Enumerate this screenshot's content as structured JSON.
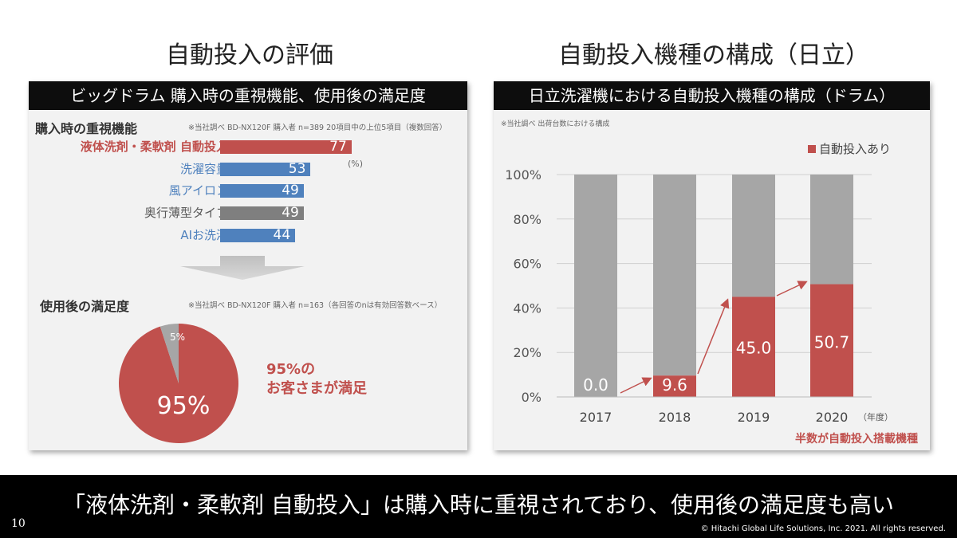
{
  "left": {
    "heading": "自動投入の評価",
    "panel_title": "ビッグドラム 購入時の重視機能、使用後の満足度",
    "section1_title": "購入時の重視機能",
    "section1_note": "※当社調べ BD-NX120F 購入者 n=389 20項目中の上位5項目（複数回答）",
    "unit": "(%)",
    "bars": [
      {
        "label": "液体洗剤・柔軟剤 自動投入",
        "value": 77,
        "color": "#c0504d",
        "label_color": "#c0504d",
        "bold": true
      },
      {
        "label": "洗濯容量",
        "value": 53,
        "color": "#4f81bd",
        "label_color": "#4f81bd",
        "bold": false
      },
      {
        "label": "風アイロン",
        "value": 49,
        "color": "#4f81bd",
        "label_color": "#4f81bd",
        "bold": false
      },
      {
        "label": "奥行薄型タイプ",
        "value": 49,
        "color": "#7f7f7f",
        "label_color": "#595959",
        "bold": false
      },
      {
        "label": "AIお洗濯",
        "value": 44,
        "color": "#4f81bd",
        "label_color": "#4f81bd",
        "bold": false
      }
    ],
    "section2_title": "使用後の満足度",
    "section2_note": "※当社調べ BD-NX120F 購入者 n=163（各回答のnは有効回答数ベース）",
    "pie_main_label": "95%",
    "pie_small_label": "5%",
    "callout_line1": "95%の",
    "callout_line2": "お客さまが満足"
  },
  "right": {
    "heading": "自動投入機種の構成（日立）",
    "panel_title": "日立洗濯機における自動投入機種の構成（ドラム）",
    "note": "※当社調べ 出荷台数における構成",
    "legend": "自動投入あり",
    "x_unit": "（年度）",
    "conclusion": "半数が自動投入搭載機種"
  },
  "footer": {
    "main": "「液体洗剤・柔軟剤 自動投入」は購入時に重視されており、使用後の満足度も高い",
    "page": "10",
    "copyright": "© Hitachi Global Life Solutions, Inc. 2021. All rights reserved."
  },
  "chart_data": [
    {
      "type": "bar",
      "orientation": "horizontal",
      "categories": [
        "液体洗剤・柔軟剤 自動投入",
        "洗濯容量",
        "風アイロン",
        "奥行薄型タイプ",
        "AIお洗濯"
      ],
      "values": [
        77,
        53,
        49,
        49,
        44
      ],
      "unit": "(%)"
    },
    {
      "type": "pie",
      "labels": [
        "",
        ""
      ],
      "values": [
        95,
        5
      ],
      "colors": [
        "#c0504d",
        "#a6a6a6"
      ]
    },
    {
      "type": "bar",
      "stacked": true,
      "categories": [
        "2017",
        "2018",
        "2019",
        "2020"
      ],
      "series": [
        {
          "name": "自動投入あり",
          "values": [
            0.0,
            9.6,
            45.0,
            50.7
          ],
          "color": "#c0504d"
        },
        {
          "name": "",
          "values": [
            100.0,
            90.4,
            55.0,
            49.3
          ],
          "color": "#a6a6a6"
        }
      ],
      "yticks": [
        "0%",
        "20%",
        "40%",
        "60%",
        "80%",
        "100%"
      ],
      "ylim": [
        0,
        100
      ],
      "data_labels": [
        "0.0",
        "9.6",
        "45.0",
        "50.7"
      ]
    }
  ]
}
